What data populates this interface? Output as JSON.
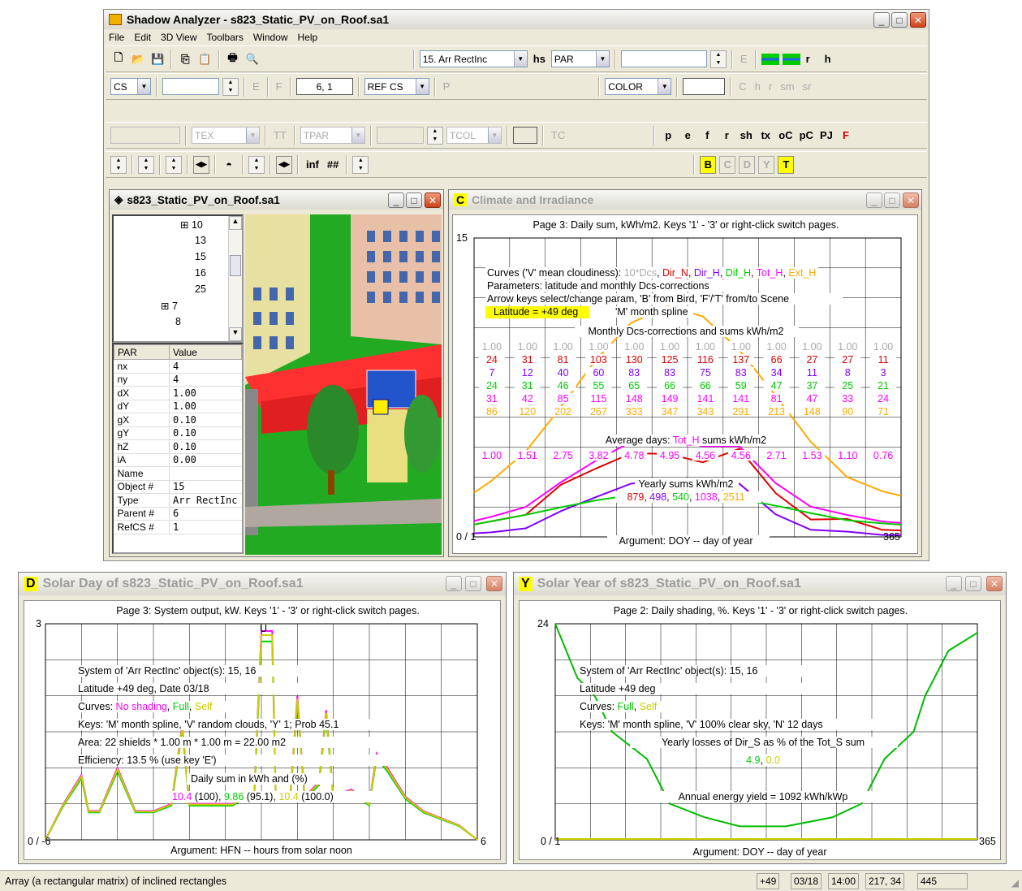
{
  "app": {
    "title": "Shadow Analyzer - s823_Static_PV_on_Roof.sa1",
    "menu": [
      "File",
      "Edit",
      "3D View",
      "Toolbars",
      "Window",
      "Help"
    ]
  },
  "toolbar": {
    "object_combo": "15. Arr RectInc",
    "hs": "hs",
    "par_combo": "PAR",
    "e1": "E",
    "r": "r",
    "h": "h",
    "cs_combo": "CS",
    "e2": "E",
    "f": "F",
    "coords": "6, 1",
    "refcs_combo": "REF CS",
    "p": "P",
    "color_combo": "COLOR",
    "c": "C",
    "h2": "h",
    "r2": "r",
    "sm": "sm",
    "sr": "sr",
    "tex_combo": "TEX",
    "tt": "TT",
    "tpar_combo": "TPAR",
    "tcol_combo": "TCOL",
    "tc": "TC",
    "keys": [
      "p",
      "e",
      "f",
      "r",
      "sh",
      "tx",
      "oC",
      "pC",
      "PJ",
      "F"
    ],
    "inf": "inf",
    "hash": "##",
    "mode_keys": [
      "B",
      "C",
      "D",
      "Y",
      "T"
    ]
  },
  "tree_window": {
    "title": "s823_Static_PV_on_Roof.sa1",
    "tree": [
      "10",
      "13",
      "15",
      "16",
      "25",
      "7",
      "8"
    ],
    "table_head": [
      "PAR",
      "Value"
    ],
    "rows": [
      [
        "nx",
        "4"
      ],
      [
        "ny",
        "4"
      ],
      [
        "dX",
        "1.00"
      ],
      [
        "dY",
        "1.00"
      ],
      [
        "gX",
        "0.10"
      ],
      [
        "gY",
        "0.10"
      ],
      [
        "hZ",
        "0.10"
      ],
      [
        "iA",
        "0.00"
      ],
      [
        "Name",
        ""
      ],
      [
        "Object #",
        "15"
      ],
      [
        "Type",
        "Arr RectInc"
      ],
      [
        "Parent #",
        "6"
      ],
      [
        "RefCS #",
        "1"
      ]
    ]
  },
  "climate": {
    "key": "C",
    "title": "Climate and Irradiance",
    "header": "Page 3: Daily sum, kWh/m2. Keys '1' - '3' or right-click switch pages.",
    "ytop": "15",
    "yzero": "0 / 1",
    "xend": "365",
    "curves_prefix": "Curves ('V' mean cloudiness): ",
    "curves": [
      {
        "t": "10*Dcs",
        "c": "#aaaaaa"
      },
      {
        "t": "Dir_N",
        "c": "#e00000"
      },
      {
        "t": "Dir_H",
        "c": "#8000ff"
      },
      {
        "t": "Dif_H",
        "c": "#00cc00"
      },
      {
        "t": "Tot_H",
        "c": "#ff00ff"
      },
      {
        "t": "Ext_H",
        "c": "#ffaa00"
      }
    ],
    "params": "Parameters: latitude and monthly Dcs-corrections",
    "arrows": "Arrow keys select/change param, 'B' from Bird, 'F'/'T' from/to Scene",
    "latitude": "Latitude = +49 deg",
    "mspline": "'M' month spline",
    "monthly": "Monthly Dcs-corrections and sums kWh/m2",
    "table": [
      {
        "c": "#aaaaaa",
        "v": [
          "1.00",
          "1.00",
          "1.00",
          "1.00",
          "1.00",
          "1.00",
          "1.00",
          "1.00",
          "1.00",
          "1.00",
          "1.00",
          "1.00"
        ]
      },
      {
        "c": "#e00000",
        "v": [
          "24",
          "31",
          "81",
          "103",
          "130",
          "125",
          "116",
          "137",
          "66",
          "27",
          "27",
          "11"
        ]
      },
      {
        "c": "#8000ff",
        "v": [
          "7",
          "12",
          "40",
          "60",
          "83",
          "83",
          "75",
          "83",
          "34",
          "11",
          "8",
          "3"
        ]
      },
      {
        "c": "#00cc00",
        "v": [
          "24",
          "31",
          "46",
          "55",
          "65",
          "66",
          "66",
          "59",
          "47",
          "37",
          "25",
          "21"
        ]
      },
      {
        "c": "#ff00ff",
        "v": [
          "31",
          "42",
          "85",
          "115",
          "148",
          "149",
          "141",
          "141",
          "81",
          "47",
          "33",
          "24"
        ]
      },
      {
        "c": "#ffaa00",
        "v": [
          "86",
          "120",
          "202",
          "267",
          "333",
          "347",
          "343",
          "291",
          "213",
          "148",
          "90",
          "71"
        ]
      }
    ],
    "avg_label": "Average days: ",
    "avg_tot": "Tot_H",
    "avg_suffix": " sums kWh/m2",
    "avg": [
      "1.00",
      "1.51",
      "2.75",
      "3.82",
      "4.78",
      "4.95",
      "4.56",
      "4.56",
      "2.71",
      "1.53",
      "1.10",
      "0.76"
    ],
    "yearly": "Yearly sums kWh/m2",
    "yearly_vals": [
      {
        "t": "879",
        "c": "#e00000"
      },
      {
        "t": "498",
        "c": "#8000ff"
      },
      {
        "t": "540",
        "c": "#00cc00"
      },
      {
        "t": "1038",
        "c": "#ff00ff"
      },
      {
        "t": "2511",
        "c": "#ffaa00"
      }
    ],
    "arg": "Argument: DOY -- day of year"
  },
  "day": {
    "key": "D",
    "title": "Solar Day of s823_Static_PV_on_Roof.sa1",
    "header": "Page 3: System output, kW. Keys '1' - '3' or right-click switch pages.",
    "ytop": "3",
    "yzero": "0 / -6",
    "xend": "6",
    "u": "U",
    "system": "System of 'Arr RectInc' object(s): 15, 16",
    "lat": "Latitude +49 deg, Date 03/18",
    "curves_prefix": "Curves: ",
    "c1": "No shading",
    "c2": "Full",
    "c3": "Self",
    "keys": "Keys: 'M' month spline, 'V' random clouds, 'Y' 1; Prob 45.1",
    "area": "Area: 22 shields * 1.00 m * 1.00 m = 22.00 m2",
    "eff": "Efficiency: 13.5 % (use key 'E')",
    "daily": "Daily sum in kWh and (%)",
    "v1": "10.4",
    "p1": " (100), ",
    "v2": "9.86",
    "p2": " (95.1), ",
    "v3": "10.4",
    "p3": " (100.0)",
    "arg": "Argument: HFN -- hours from solar noon"
  },
  "year": {
    "key": "Y",
    "title": "Solar Year of s823_Static_PV_on_Roof.sa1",
    "header": "Page 2: Daily shading, %. Keys '1' - '3' or right-click switch pages.",
    "ytop": "24",
    "yzero": "0 / 1",
    "xend": "365",
    "system": "System of 'Arr RectInc' object(s): 15, 16",
    "lat": "Latitude +49 deg",
    "curves_prefix": "Curves: ",
    "c1": "Full",
    "c2": "Self",
    "keys": "Keys: 'M' month spline, 'V' 100% clear sky, 'N' 12 days",
    "losses": "Yearly losses of Dir_S as % of the Tot_S sum",
    "l1": "4.9",
    "l2": "0.0",
    "annual": "Annual energy yield = 1092 kWh/kWp",
    "arg": "Argument: DOY -- day of year"
  },
  "status": {
    "text": "Array (a rectangular matrix) of inclined rectangles",
    "lat": "+49",
    "date": "03/18",
    "time": "14:00",
    "pos": "217, 34",
    "num": "445"
  }
}
